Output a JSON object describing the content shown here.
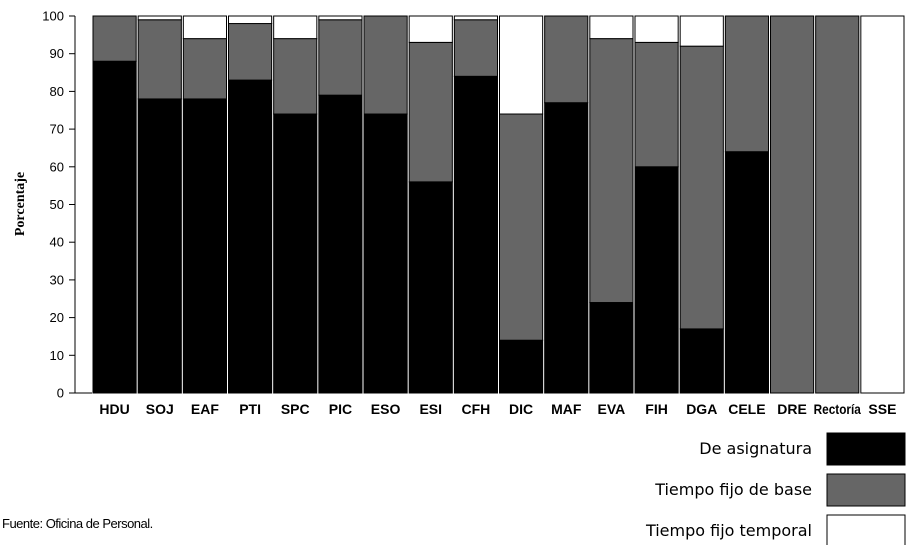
{
  "chart_data": {
    "type": "bar",
    "stacked": true,
    "ylabel": "Porcentaje",
    "xlabel": "",
    "ylim": [
      0,
      100
    ],
    "yticks": [
      0,
      10,
      20,
      30,
      40,
      50,
      60,
      70,
      80,
      90,
      100
    ],
    "categories": [
      "HDU",
      "SOJ",
      "EAF",
      "PTI",
      "SPC",
      "PIC",
      "ESO",
      "ESI",
      "CFH",
      "DIC",
      "MAF",
      "EVA",
      "FIH",
      "DGA",
      "CELE",
      "DRE",
      "Rectoría",
      "SSE"
    ],
    "series": [
      {
        "name": "De asignatura",
        "color": "#000000",
        "values": [
          88,
          78,
          78,
          83,
          74,
          79,
          74,
          56,
          84,
          14,
          77,
          24,
          60,
          17,
          64,
          0,
          0,
          0
        ]
      },
      {
        "name": "Tiempo fijo de base",
        "color": "#666666",
        "values": [
          12,
          21,
          16,
          15,
          20,
          20,
          26,
          37,
          15,
          60,
          23,
          70,
          33,
          75,
          36,
          100,
          100,
          0
        ]
      },
      {
        "name": "Tiempo fijo temporal",
        "color": "#ffffff",
        "values": [
          0,
          1,
          6,
          2,
          6,
          1,
          0,
          7,
          1,
          26,
          0,
          6,
          7,
          8,
          0,
          0,
          0,
          100
        ]
      }
    ],
    "grid": false,
    "legend_position": "bottom-right"
  },
  "source_note": "Fuente: Oficina de Personal."
}
